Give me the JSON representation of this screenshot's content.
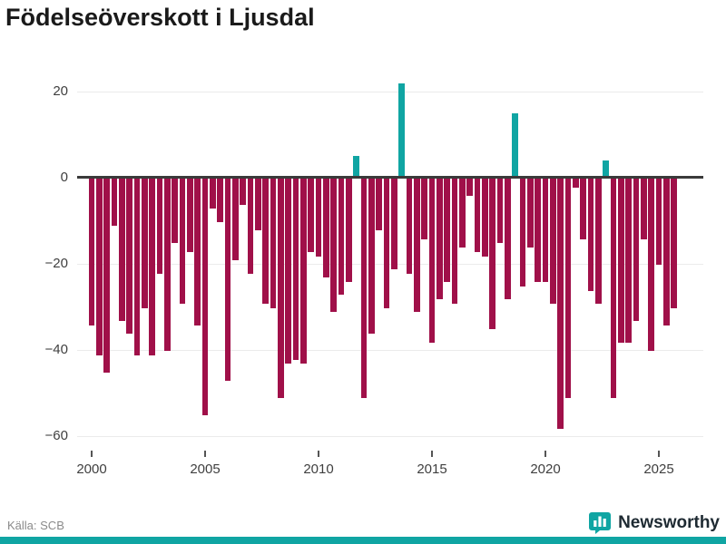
{
  "title": "Födelseöverskott i Ljusdal",
  "source": "Källa: SCB",
  "brand": {
    "name": "Newsworthy",
    "color": "#10A5A3"
  },
  "colors": {
    "negative_bar": "#A01049",
    "positive_bar": "#10A5A3",
    "zero_axis": "#3a3a3a",
    "gridline": "#ebebeb",
    "tick_label": "#3f3f3f",
    "title_text": "#1a1a1a",
    "source_text": "#8a8a8a",
    "background": "#ffffff"
  },
  "chart_data": {
    "type": "bar",
    "title": "Födelseöverskott i Ljusdal",
    "xlabel": "",
    "ylabel": "",
    "legend": "none",
    "grid": "horizontal",
    "ylim": [
      -63,
      25
    ],
    "y_ticks": [
      20,
      0,
      -20,
      -40,
      -60
    ],
    "y_tick_labels": [
      "20",
      "0",
      "−20",
      "−40",
      "−60"
    ],
    "x_tick_years": [
      2000,
      2005,
      2010,
      2015,
      2020,
      2025
    ],
    "x_tick_labels": [
      "2000",
      "2005",
      "2010",
      "2015",
      "2020",
      "2025"
    ],
    "x_start_year": 2000,
    "bars_per_year": 3,
    "values": [
      -34,
      -41,
      -45,
      -11,
      -33,
      -36,
      -41,
      -30,
      -41,
      -22,
      -40,
      -15,
      -29,
      -17,
      -34,
      -55,
      -7,
      -10,
      -47,
      -19,
      -6,
      -22,
      -12,
      -29,
      -30,
      -51,
      -43,
      -42,
      -43,
      -17,
      -18,
      -23,
      -31,
      -27,
      -24,
      5,
      -51,
      -36,
      -12,
      -30,
      -21,
      22,
      -22,
      -31,
      -14,
      -38,
      -28,
      -24,
      -29,
      -16,
      -4,
      -17,
      -18,
      -35,
      -15,
      -28,
      15,
      -25,
      -16,
      -24,
      -24,
      -29,
      -58,
      -51,
      -2,
      -14,
      -26,
      -29,
      4,
      -51,
      -38,
      -38,
      -33,
      -14,
      -40,
      -20,
      -34,
      -30
    ],
    "positive_color": "#10A5A3",
    "negative_color": "#A01049"
  }
}
